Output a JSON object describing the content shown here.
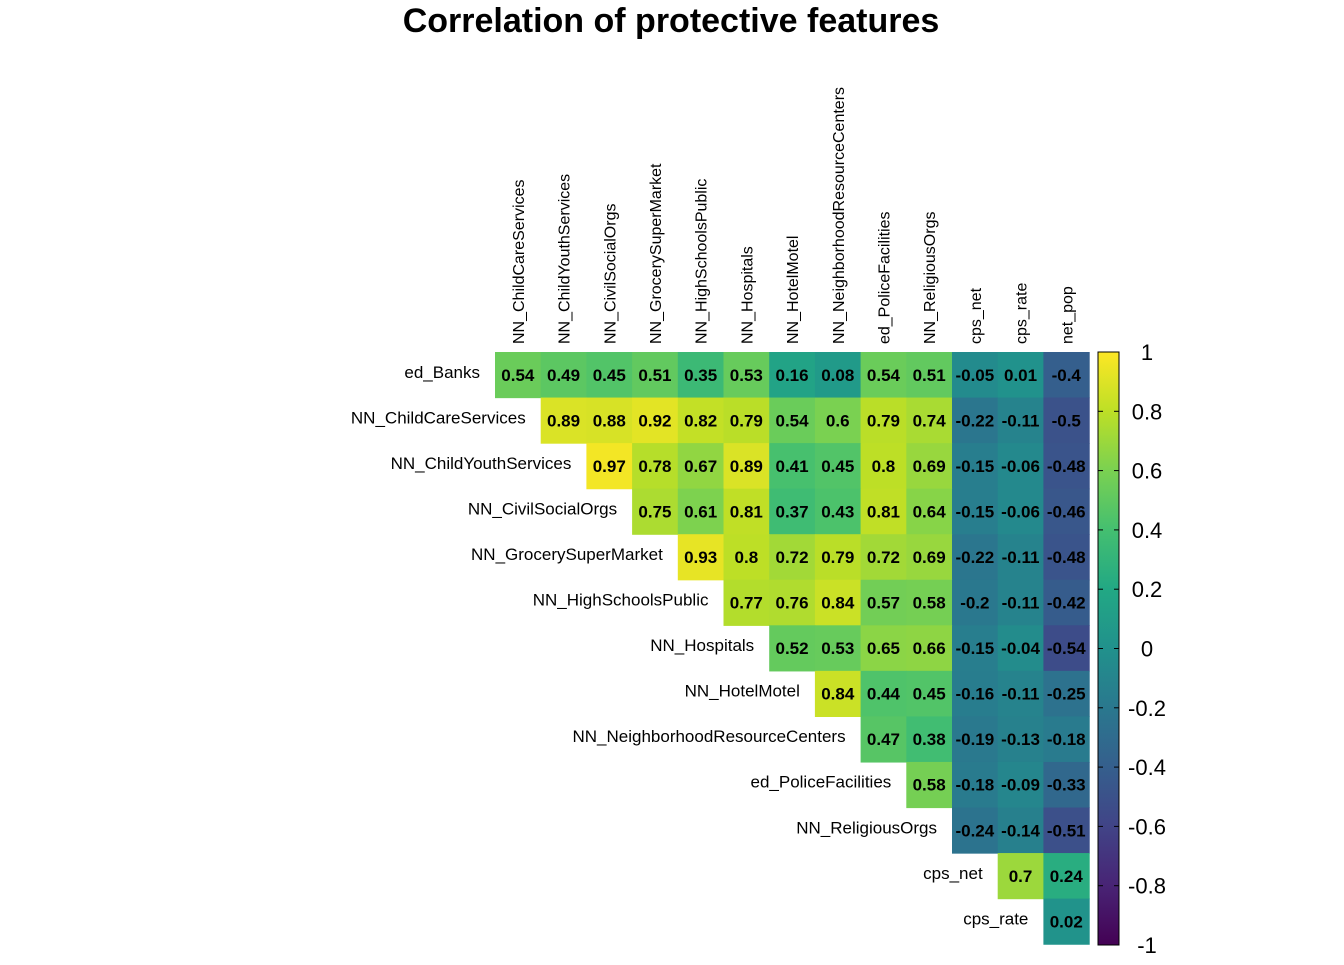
{
  "chart_data": {
    "type": "heatmap",
    "title": "Correlation of protective features",
    "row_labels": [
      "ed_Banks",
      "NN_ChildCareServices",
      "NN_ChildYouthServices",
      "NN_CivilSocialOrgs",
      "NN_GrocerySuperMarket",
      "NN_HighSchoolsPublic",
      "NN_Hospitals",
      "NN_HotelMotel",
      "NN_NeighborhoodResourceCenters",
      "ed_PoliceFacilities",
      "NN_ReligiousOrgs",
      "cps_net",
      "cps_rate"
    ],
    "col_labels": [
      "NN_ChildCareServices",
      "NN_ChildYouthServices",
      "NN_CivilSocialOrgs",
      "NN_GrocerySuperMarket",
      "NN_HighSchoolsPublic",
      "NN_Hospitals",
      "NN_HotelMotel",
      "NN_NeighborhoodResourceCenters",
      "ed_PoliceFacilities",
      "NN_ReligiousOrgs",
      "cps_net",
      "cps_rate",
      "net_pop"
    ],
    "layout": "upper-triangle",
    "values": [
      [
        0.54,
        0.49,
        0.45,
        0.51,
        0.35,
        0.53,
        0.16,
        0.08,
        0.54,
        0.51,
        -0.05,
        0.01,
        -0.4
      ],
      [
        0.89,
        0.88,
        0.92,
        0.82,
        0.79,
        0.54,
        0.6,
        0.79,
        0.74,
        -0.22,
        -0.11,
        -0.5
      ],
      [
        0.97,
        0.78,
        0.67,
        0.89,
        0.41,
        0.45,
        0.8,
        0.69,
        -0.15,
        -0.06,
        -0.48
      ],
      [
        0.75,
        0.61,
        0.81,
        0.37,
        0.43,
        0.81,
        0.64,
        -0.15,
        -0.06,
        -0.46
      ],
      [
        0.93,
        0.8,
        0.72,
        0.79,
        0.72,
        0.69,
        -0.22,
        -0.11,
        -0.48
      ],
      [
        0.77,
        0.76,
        0.84,
        0.57,
        0.58,
        -0.2,
        -0.11,
        -0.42
      ],
      [
        0.52,
        0.53,
        0.65,
        0.66,
        -0.15,
        -0.04,
        -0.54
      ],
      [
        0.84,
        0.44,
        0.45,
        -0.16,
        -0.11,
        -0.25
      ],
      [
        0.47,
        0.38,
        -0.19,
        -0.13,
        -0.18
      ],
      [
        0.58,
        -0.18,
        -0.09,
        -0.33
      ],
      [
        -0.24,
        -0.14,
        -0.51
      ],
      [
        0.7,
        0.24
      ],
      [
        0.02
      ]
    ],
    "color_scale": "viridis",
    "range": [
      -1,
      1
    ],
    "colorbar_ticks": [
      "1",
      "0.8",
      "0.6",
      "0.4",
      "0.2",
      "0",
      "-0.2",
      "-0.4",
      "-0.6",
      "-0.8",
      "-1"
    ],
    "legend_position": "right"
  }
}
